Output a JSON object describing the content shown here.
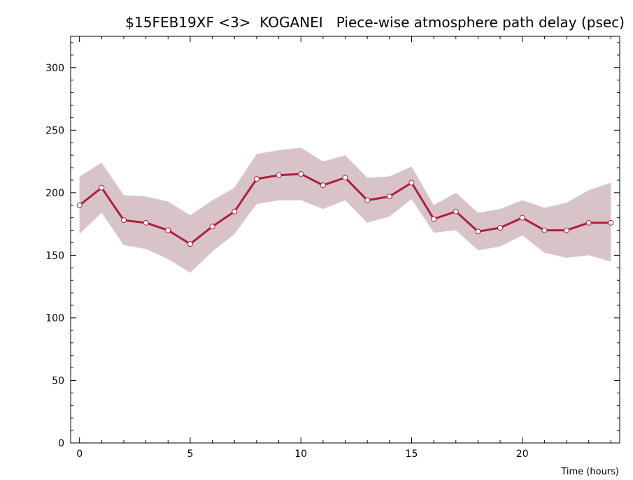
{
  "chart_data": {
    "type": "line",
    "title": "$15FEB19XF <3>  KOGANEI   Piece-wise atmosphere path delay (psec)",
    "xlabel": "Time (hours)",
    "ylabel": "",
    "xlim": [
      -0.4,
      24.4
    ],
    "ylim": [
      0,
      325
    ],
    "x_ticks": [
      0,
      5,
      10,
      15,
      20
    ],
    "y_ticks": [
      0,
      50,
      100,
      150,
      200,
      250,
      300
    ],
    "grid": false,
    "x": [
      0,
      1,
      2,
      3,
      4,
      5,
      6,
      7,
      8,
      9,
      10,
      11,
      12,
      13,
      14,
      15,
      16,
      17,
      18,
      19,
      20,
      21,
      22,
      23,
      24
    ],
    "series": [
      {
        "values": [
          190,
          204,
          178,
          176,
          170,
          159,
          173,
          185,
          211,
          214,
          215,
          206,
          212,
          194,
          197,
          208,
          179,
          185,
          169,
          172,
          180,
          170,
          170,
          176,
          176
        ],
        "upper": [
          213,
          224,
          198,
          197,
          193,
          182,
          194,
          204,
          231,
          234,
          236,
          225,
          230,
          212,
          213,
          221,
          190,
          200,
          184,
          187,
          194,
          188,
          192,
          202,
          208
        ],
        "lower": [
          167,
          184,
          158,
          155,
          147,
          136,
          153,
          167,
          191,
          194,
          194,
          187,
          194,
          176,
          181,
          195,
          168,
          170,
          154,
          157,
          166,
          152,
          148,
          150,
          145
        ]
      }
    ],
    "colors": {
      "line": "#b01e3c",
      "band": "#d8c4c8",
      "marker_fill": "#ffffff"
    }
  }
}
